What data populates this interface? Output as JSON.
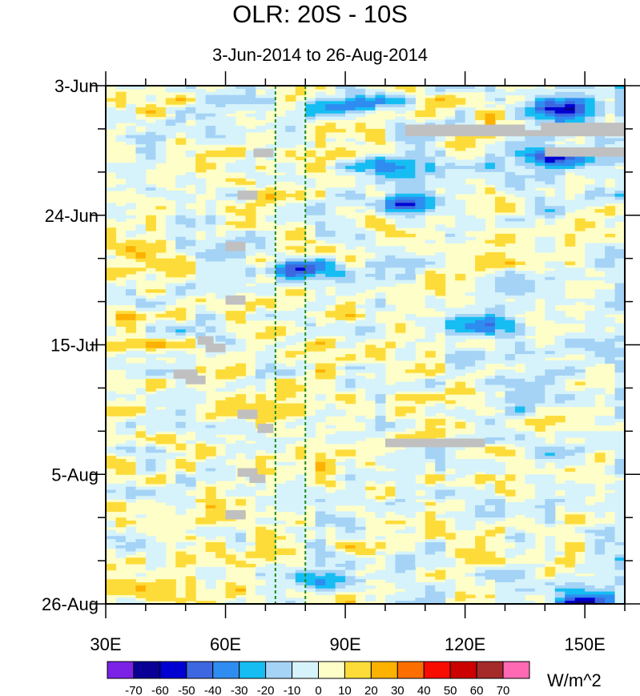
{
  "chart_data": {
    "type": "heatmap",
    "title": "OLR: 20S - 10S",
    "subtitle": "3-Jun-2014 to 26-Aug-2014",
    "x_axis": {
      "range": [
        30,
        160
      ],
      "ticks": [
        30,
        60,
        90,
        120,
        150
      ],
      "tick_labels": [
        "30E",
        "60E",
        "90E",
        "120E",
        "150E"
      ]
    },
    "y_axis": {
      "range": [
        "3-Jun-2014",
        "26-Aug-2014"
      ],
      "inverted": true,
      "tick_labels": [
        "3-Jun",
        "24-Jun",
        "15-Jul",
        "5-Aug",
        "26-Aug"
      ]
    },
    "reference_lines_lon": [
      72.5,
      80
    ],
    "reference_line_color": "#1a8a1a",
    "colorbar": {
      "units": "W/m^2",
      "labels": [
        "-70",
        "-60",
        "-50",
        "-40",
        "-30",
        "-20",
        "-10",
        "0",
        "10",
        "20",
        "30",
        "40",
        "50",
        "60",
        "70"
      ],
      "colors": [
        "#7b22e6",
        "#0a0096",
        "#0000d2",
        "#3d67e0",
        "#2f8cf0",
        "#16bdf2",
        "#a5d3f6",
        "#d6f3fb",
        "#fefec8",
        "#fddc3a",
        "#fdb100",
        "#fc6e00",
        "#f80b00",
        "#cc0000",
        "#a52a2a",
        "#ff69b4"
      ]
    },
    "missing_color": "#c0c0c0",
    "background_value_color": "#fefec8",
    "features": [
      {
        "lon": [
          82,
          98
        ],
        "date": "6-Jun",
        "value": -40
      },
      {
        "lon": [
          140,
          150
        ],
        "date": "7-Jun",
        "value": -60
      },
      {
        "lon": [
          95,
          110
        ],
        "date": "16-Jun",
        "value": -30
      },
      {
        "lon": [
          140,
          150
        ],
        "date": "15-Jun",
        "value": -50
      },
      {
        "lon": [
          100,
          110
        ],
        "date": "22-Jun",
        "value": -40
      },
      {
        "lon": [
          73,
          85
        ],
        "date": "3-Jul",
        "value": -50
      },
      {
        "lon": [
          118,
          128
        ],
        "date": "12-Jul",
        "value": -40
      },
      {
        "lon": [
          80,
          92
        ],
        "date": "22-Aug",
        "value": -40
      },
      {
        "lon": [
          145,
          155
        ],
        "date": "26-Aug",
        "value": -50
      }
    ]
  }
}
